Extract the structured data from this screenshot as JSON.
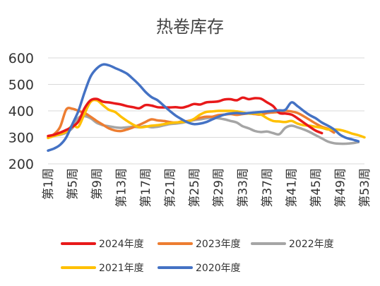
{
  "chart_data": {
    "type": "line",
    "title": "热卷库存",
    "xlabel": "",
    "ylabel": "",
    "ylim": [
      200,
      600
    ],
    "yticks": [
      200,
      300,
      400,
      500,
      600
    ],
    "xlim": [
      1,
      53
    ],
    "xticks": [
      "第1周",
      "第5周",
      "第9周",
      "第13周",
      "第17周",
      "第21周",
      "第25周",
      "第29周",
      "第33周",
      "第37周",
      "第41周",
      "第45周",
      "第49周",
      "第53周"
    ],
    "xtick_weeks": [
      1,
      5,
      9,
      13,
      17,
      21,
      25,
      29,
      33,
      37,
      41,
      45,
      49,
      53
    ],
    "grid": "horizontal",
    "legend_position": "bottom",
    "series": [
      {
        "name": "2024年度",
        "color": "#e8191a",
        "x": [
          1,
          2,
          3,
          4,
          5,
          6,
          7,
          8,
          9,
          10,
          11,
          12,
          13,
          14,
          15,
          16,
          17,
          18,
          19,
          20,
          21,
          22,
          23,
          24,
          25,
          26,
          27,
          28,
          29,
          30,
          31,
          32,
          33,
          34,
          35,
          36,
          37,
          38,
          39,
          40,
          41,
          42,
          43,
          44,
          45,
          46
        ],
        "values": [
          305,
          310,
          318,
          328,
          340,
          360,
          410,
          440,
          445,
          435,
          432,
          428,
          424,
          418,
          414,
          410,
          422,
          420,
          414,
          413,
          413,
          414,
          412,
          418,
          426,
          424,
          432,
          434,
          436,
          443,
          444,
          440,
          450,
          444,
          448,
          446,
          432,
          418,
          392,
          390,
          386,
          372,
          356,
          340,
          325,
          316
        ]
      },
      {
        "name": "2023年度",
        "color": "#ed7d31",
        "x": [
          1,
          2,
          3,
          4,
          5,
          6,
          7,
          8,
          9,
          10,
          11,
          12,
          13,
          14,
          15,
          16,
          17,
          18,
          19,
          20,
          21,
          22,
          23,
          24,
          25,
          26,
          27,
          28,
          29,
          30,
          31,
          32,
          33,
          34,
          35,
          36,
          37,
          38,
          39,
          40,
          41,
          42,
          43,
          44,
          45,
          46,
          47,
          48
        ],
        "values": [
          298,
          312,
          340,
          405,
          408,
          400,
          392,
          378,
          362,
          348,
          334,
          326,
          324,
          330,
          338,
          347,
          358,
          368,
          364,
          362,
          358,
          356,
          360,
          362,
          368,
          374,
          378,
          378,
          384,
          386,
          388,
          385,
          388,
          390,
          388,
          386,
          392,
          394,
          396,
          400,
          398,
          392,
          380,
          366,
          352,
          340,
          332,
          318
        ]
      },
      {
        "name": "2022年度",
        "color": "#a5a5a5",
        "x": [
          1,
          2,
          3,
          4,
          5,
          6,
          7,
          8,
          9,
          10,
          11,
          12,
          13,
          14,
          15,
          16,
          17,
          18,
          19,
          20,
          21,
          22,
          23,
          24,
          25,
          26,
          27,
          28,
          29,
          30,
          31,
          32,
          33,
          34,
          35,
          36,
          37,
          38,
          39,
          40,
          41,
          42,
          43,
          44,
          45,
          46,
          47,
          48,
          49,
          50,
          51,
          52
        ],
        "values": [
          300,
          306,
          310,
          318,
          335,
          374,
          380,
          372,
          355,
          346,
          342,
          338,
          336,
          338,
          340,
          338,
          342,
          338,
          340,
          345,
          350,
          352,
          355,
          360,
          365,
          368,
          372,
          374,
          372,
          368,
          362,
          356,
          342,
          334,
          324,
          320,
          322,
          316,
          312,
          336,
          344,
          338,
          330,
          320,
          308,
          296,
          284,
          278,
          276,
          276,
          278,
          282
        ]
      },
      {
        "name": "2021年度",
        "color": "#ffc000",
        "x": [
          1,
          2,
          3,
          4,
          5,
          6,
          7,
          8,
          9,
          10,
          11,
          12,
          13,
          14,
          15,
          16,
          17,
          18,
          19,
          20,
          21,
          22,
          23,
          24,
          25,
          26,
          27,
          28,
          29,
          30,
          31,
          32,
          33,
          34,
          35,
          36,
          37,
          38,
          39,
          40,
          41,
          42,
          43,
          44,
          45,
          46,
          47,
          48,
          49,
          50,
          51,
          52,
          53
        ],
        "values": [
          298,
          305,
          312,
          322,
          345,
          340,
          390,
          434,
          440,
          422,
          404,
          396,
          378,
          362,
          348,
          338,
          340,
          344,
          346,
          350,
          354,
          356,
          358,
          360,
          370,
          386,
          396,
          398,
          400,
          400,
          400,
          398,
          394,
          390,
          390,
          386,
          372,
          362,
          360,
          358,
          362,
          352,
          346,
          344,
          340,
          336,
          330,
          330,
          328,
          322,
          314,
          308,
          300
        ]
      },
      {
        "name": "2020年度",
        "color": "#4472c4",
        "x": [
          1,
          2,
          3,
          4,
          5,
          6,
          7,
          8,
          9,
          10,
          11,
          12,
          13,
          14,
          15,
          16,
          17,
          18,
          19,
          20,
          21,
          22,
          23,
          24,
          25,
          26,
          27,
          28,
          29,
          30,
          31,
          32,
          33,
          34,
          35,
          36,
          37,
          38,
          39,
          40,
          41,
          42,
          43,
          44,
          45,
          46,
          47,
          48,
          49,
          50,
          51,
          52
        ],
        "values": [
          250,
          258,
          272,
          300,
          350,
          400,
          470,
          530,
          560,
          575,
          572,
          562,
          552,
          540,
          520,
          498,
          472,
          452,
          440,
          420,
          400,
          382,
          368,
          356,
          350,
          352,
          358,
          368,
          378,
          386,
          390,
          392,
          390,
          392,
          394,
          396,
          398,
          400,
          402,
          404,
          432,
          418,
          400,
          384,
          372,
          356,
          344,
          330,
          310,
          298,
          292,
          285
        ]
      }
    ]
  }
}
